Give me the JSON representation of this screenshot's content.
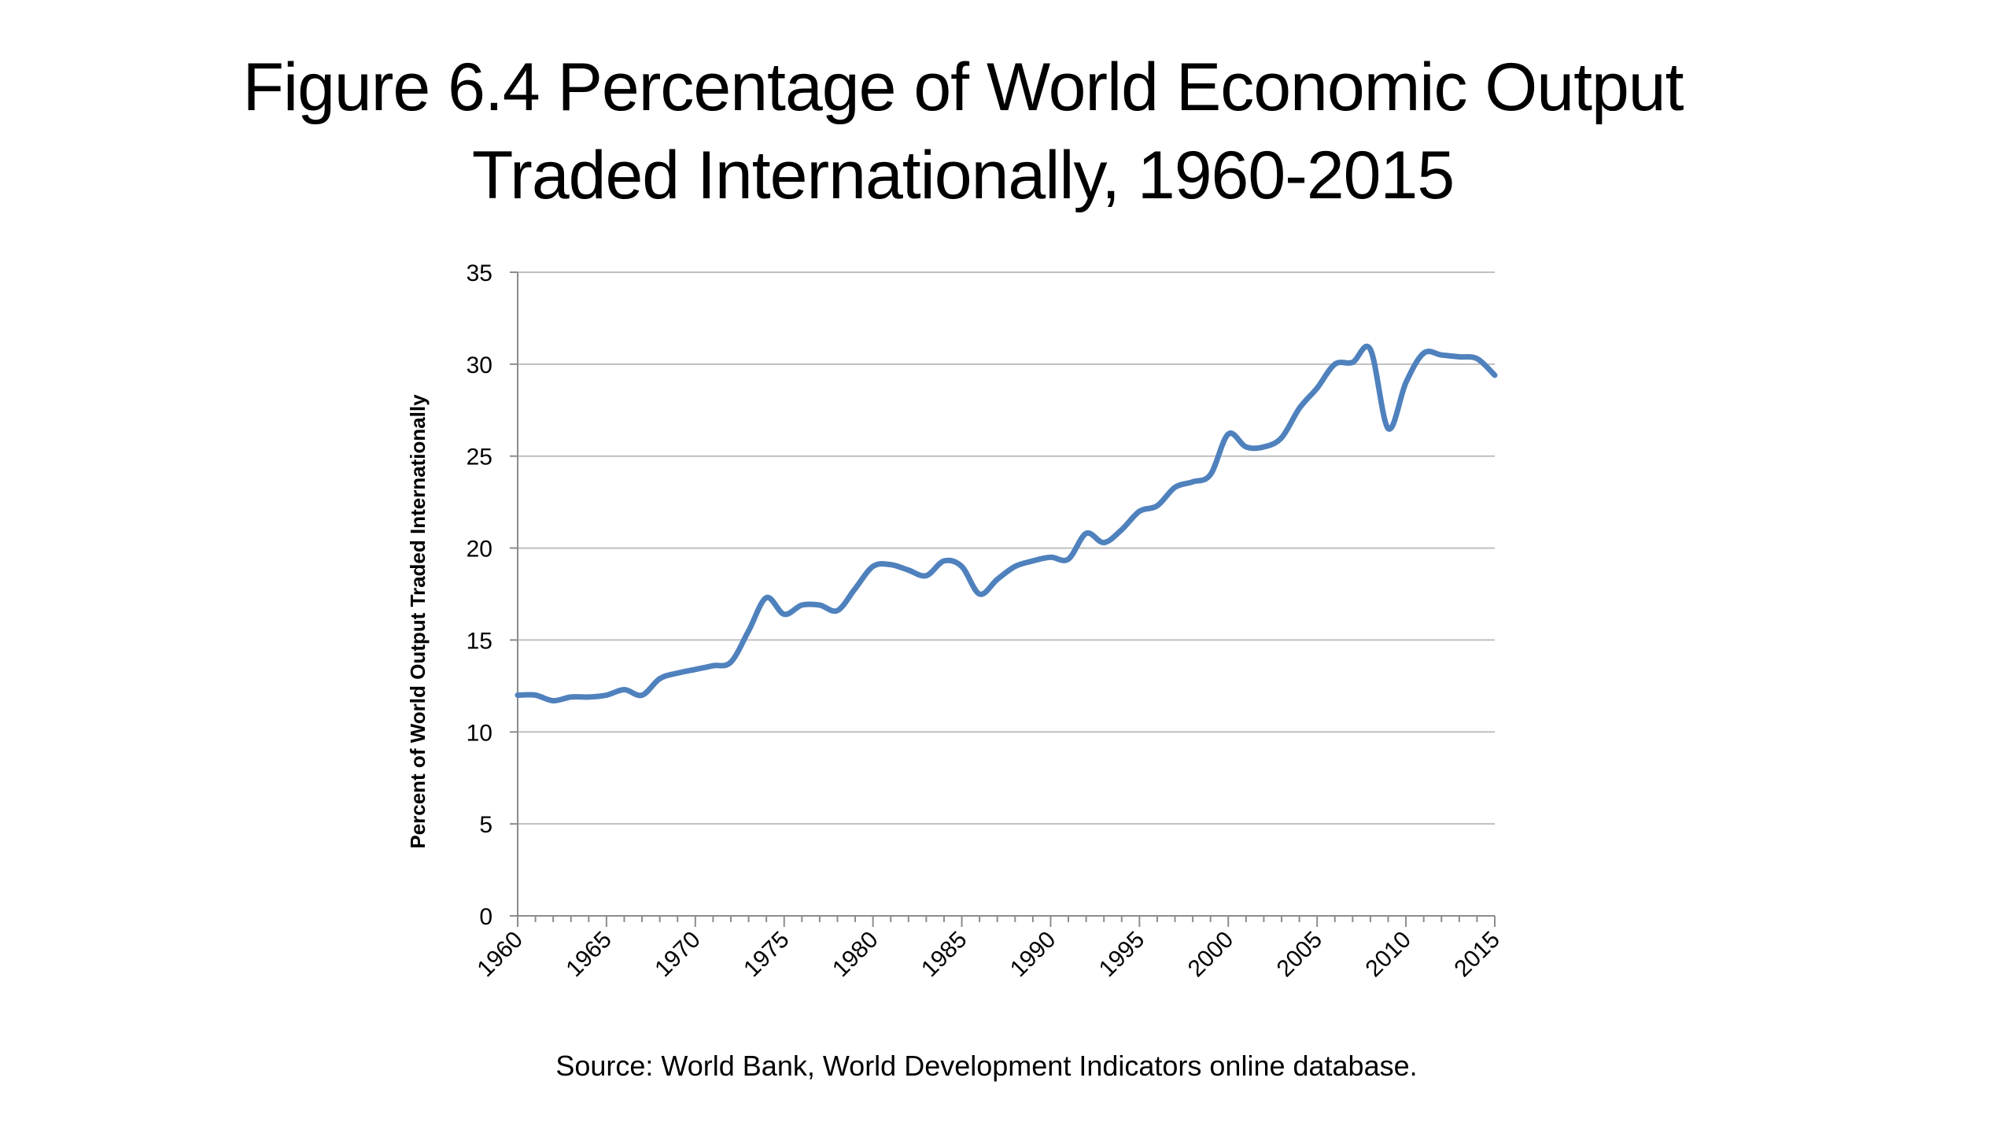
{
  "slide": {
    "title_line1": "Figure 6.4 Percentage of World Economic Output",
    "title_line2": "Traded Internationally, 1960-2015",
    "source": "Source: World Bank, World Development Indicators online database."
  },
  "chart_data": {
    "type": "line",
    "title": "",
    "xlabel": "",
    "ylabel": "Percent of World Output Traded Internationally",
    "xlim": [
      1960,
      2015
    ],
    "ylim": [
      0,
      35
    ],
    "x_ticks": [
      "1960",
      "1965",
      "1970",
      "1975",
      "1980",
      "1985",
      "1990",
      "1995",
      "2000",
      "2005",
      "2010",
      "2015"
    ],
    "y_ticks": [
      "0",
      "5",
      "10",
      "15",
      "20",
      "25",
      "30",
      "35"
    ],
    "grid": true,
    "legend": "none",
    "line_color": "#4f81bd",
    "series": [
      {
        "x": [
          1960,
          1961,
          1962,
          1963,
          1964,
          1965,
          1966,
          1967,
          1968,
          1969,
          1970,
          1971,
          1972,
          1973,
          1974,
          1975,
          1976,
          1977,
          1978,
          1979,
          1980,
          1981,
          1982,
          1983,
          1984,
          1985,
          1986,
          1987,
          1988,
          1989,
          1990,
          1991,
          1992,
          1993,
          1994,
          1995,
          1996,
          1997,
          1998,
          1999,
          2000,
          2001,
          2002,
          2003,
          2004,
          2005,
          2006,
          2007,
          2008,
          2009,
          2010,
          2011,
          2012,
          2013,
          2014,
          2015
        ],
        "y": [
          12.0,
          12.0,
          11.7,
          11.9,
          11.9,
          12.0,
          12.3,
          12.0,
          12.9,
          13.2,
          13.4,
          13.6,
          13.8,
          15.5,
          17.3,
          16.4,
          16.9,
          16.9,
          16.6,
          17.8,
          19.0,
          19.1,
          18.8,
          18.5,
          19.3,
          19.0,
          17.5,
          18.3,
          19.0,
          19.3,
          19.5,
          19.4,
          20.8,
          20.3,
          21.0,
          22.0,
          22.3,
          23.3,
          23.6,
          24.0,
          26.2,
          25.5,
          25.5,
          26.0,
          27.6,
          28.7,
          30.0,
          30.1,
          30.8,
          26.5,
          29.0,
          30.6,
          30.5,
          30.4,
          30.3,
          29.4
        ]
      }
    ]
  }
}
